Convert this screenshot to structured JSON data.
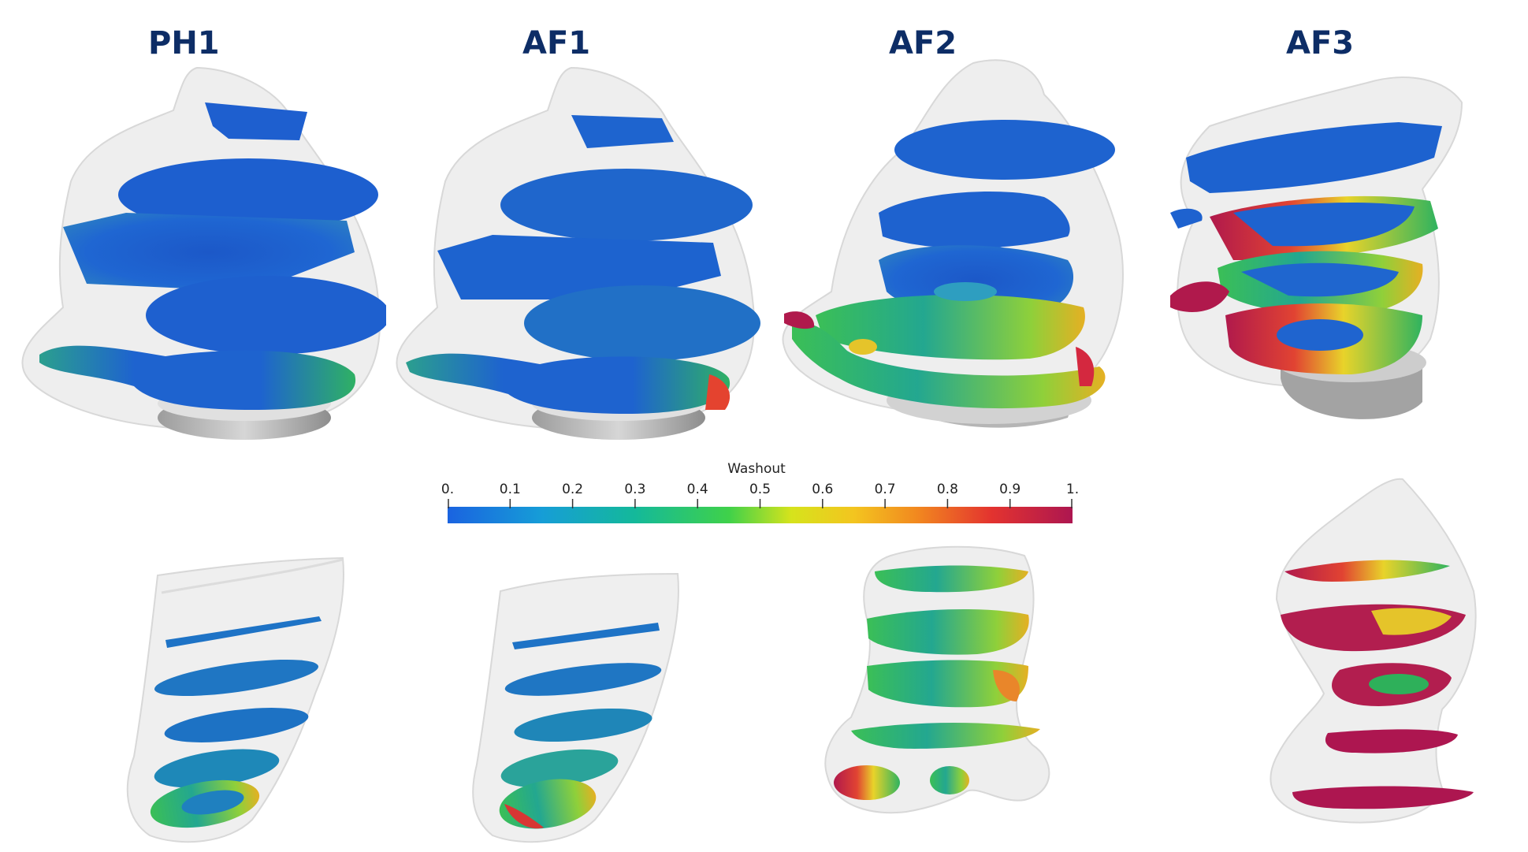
{
  "cases": [
    {
      "title": "PH1",
      "washout": "low"
    },
    {
      "title": "AF1",
      "washout": "low-mid"
    },
    {
      "title": "AF2",
      "washout": "mid"
    },
    {
      "title": "AF3",
      "washout": "high"
    }
  ],
  "colorbar": {
    "title": "Washout",
    "ticks": [
      "0.",
      "0.1",
      "0.2",
      "0.3",
      "0.4",
      "0.5",
      "0.6",
      "0.7",
      "0.8",
      "0.9",
      "1."
    ],
    "range": [
      0,
      1
    ],
    "colormap": [
      "#3a4cc0",
      "#1a6fe0",
      "#10a6c8",
      "#1bc47a",
      "#6fd33a",
      "#e6e41a",
      "#f5b020",
      "#f07a1e",
      "#e3342f",
      "#b0124a"
    ]
  },
  "colors": {
    "title": "#0d2d66",
    "shell": "#e8e8e8",
    "base": "#b9b9b9",
    "low": "#1d5fd0",
    "mid": "#2dbb6a",
    "yellow": "#e6dc2a",
    "red": "#d9303a",
    "crimson": "#a31a4d"
  }
}
